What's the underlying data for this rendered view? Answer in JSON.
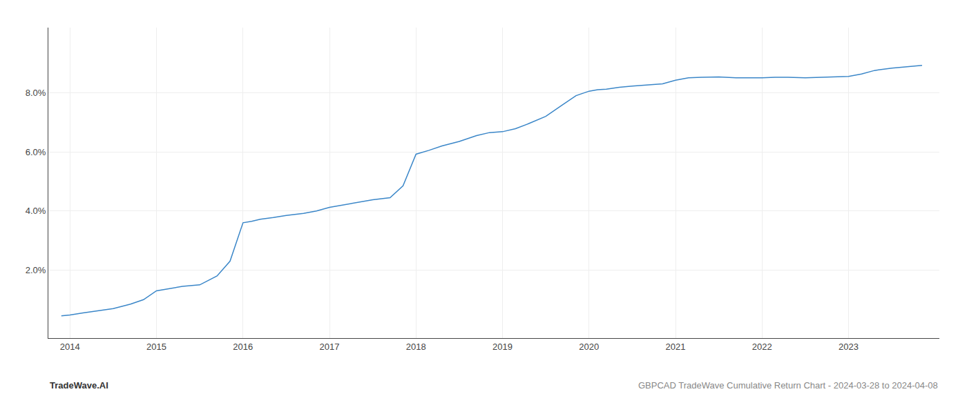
{
  "chart_data": {
    "type": "line",
    "x": [
      2013.9,
      2014.0,
      2014.15,
      2014.3,
      2014.5,
      2014.7,
      2014.85,
      2015.0,
      2015.15,
      2015.3,
      2015.5,
      2015.7,
      2015.85,
      2016.0,
      2016.1,
      2016.2,
      2016.35,
      2016.5,
      2016.7,
      2016.85,
      2017.0,
      2017.15,
      2017.3,
      2017.5,
      2017.7,
      2017.85,
      2018.0,
      2018.15,
      2018.3,
      2018.5,
      2018.7,
      2018.85,
      2019.0,
      2019.15,
      2019.3,
      2019.5,
      2019.7,
      2019.85,
      2020.0,
      2020.1,
      2020.2,
      2020.35,
      2020.5,
      2020.7,
      2020.85,
      2021.0,
      2021.15,
      2021.3,
      2021.5,
      2021.7,
      2021.85,
      2022.0,
      2022.15,
      2022.3,
      2022.5,
      2022.7,
      2022.85,
      2023.0,
      2023.15,
      2023.3,
      2023.5,
      2023.7,
      2023.85
    ],
    "values": [
      0.45,
      0.48,
      0.55,
      0.62,
      0.7,
      0.85,
      1.0,
      1.3,
      1.38,
      1.45,
      1.5,
      1.8,
      2.3,
      3.6,
      3.65,
      3.72,
      3.78,
      3.85,
      3.92,
      4.0,
      4.12,
      4.2,
      4.28,
      4.38,
      4.45,
      4.85,
      5.92,
      6.05,
      6.2,
      6.35,
      6.55,
      6.65,
      6.68,
      6.78,
      6.95,
      7.2,
      7.6,
      7.9,
      8.05,
      8.1,
      8.12,
      8.18,
      8.22,
      8.27,
      8.3,
      8.42,
      8.5,
      8.52,
      8.53,
      8.5,
      8.5,
      8.5,
      8.52,
      8.52,
      8.5,
      8.52,
      8.53,
      8.55,
      8.63,
      8.75,
      8.83,
      8.88,
      8.92
    ],
    "color": "#3a86c8",
    "xlim": [
      2013.75,
      2024.05
    ],
    "xticks": [
      2014,
      2015,
      2016,
      2017,
      2018,
      2019,
      2020,
      2021,
      2022,
      2023
    ],
    "ylim": [
      -0.3,
      10.2
    ],
    "yticks": [
      {
        "value": 2.0,
        "label": "2.0%"
      },
      {
        "value": 4.0,
        "label": "4.0%"
      },
      {
        "value": 6.0,
        "label": "6.0%"
      },
      {
        "value": 8.0,
        "label": "8.0%"
      }
    ],
    "grid": true,
    "annotations": [
      "TradeWave.AI",
      "GBPCAD TradeWave Cumulative Return Chart - 2024-03-28 to 2024-04-08"
    ]
  }
}
